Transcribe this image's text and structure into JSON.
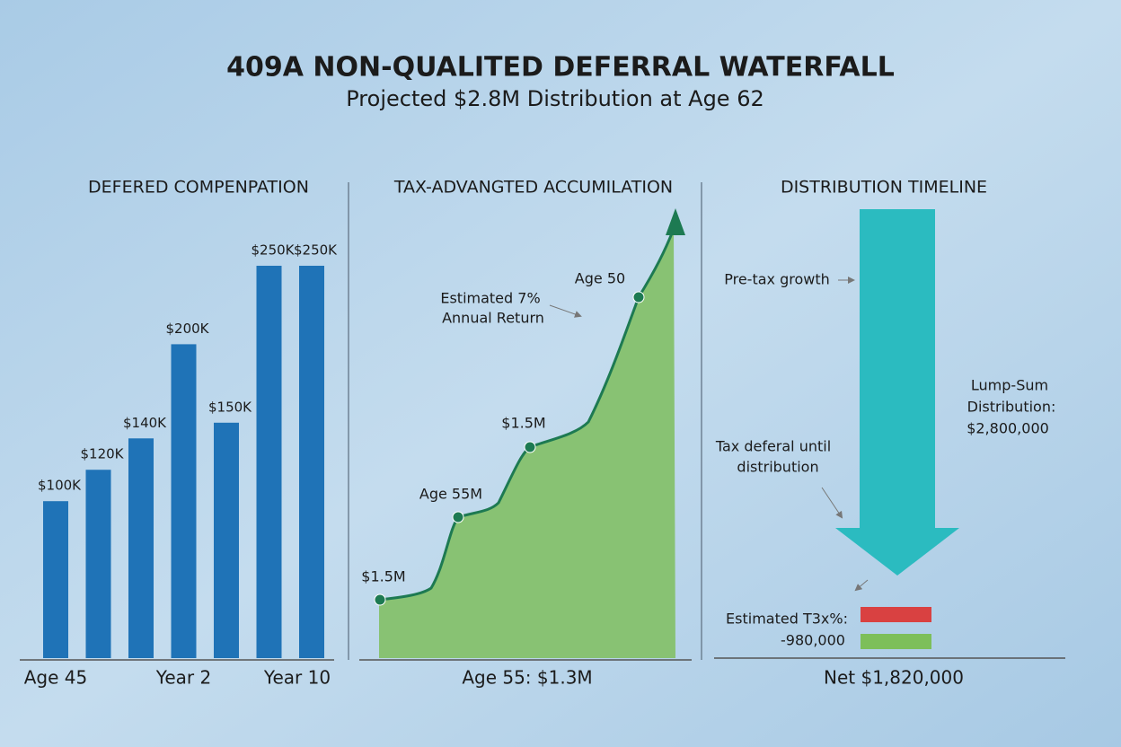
{
  "header": {
    "title": "409A NON-QUALITED DEFERRAL WATERFALL",
    "subtitle": "Projected $2.8M Distribution at Age 62"
  },
  "chart_data": {
    "type": "bar",
    "title": "DEFERED COMPENPATION",
    "categories": [
      "Age 45",
      null,
      null,
      "Year 2",
      null,
      null,
      "Year 10"
    ],
    "values": [
      100000,
      120000,
      140000,
      200000,
      150000,
      250000,
      250000
    ],
    "value_labels": [
      "$100K",
      "$120K",
      "$140K",
      "$200K",
      "$150K",
      "$250K",
      "$250K"
    ],
    "color": "#1f73b7"
  },
  "accumulation": {
    "title": "TAX-ADVANGTED ACCUMILATION",
    "annotation": [
      "Estimated 7%",
      "Annual Return"
    ],
    "point_labels": [
      "$1.5M",
      "Age 55M",
      "$1.5M",
      "Age 50"
    ],
    "footer": "Age 55: $1.3M"
  },
  "distribution": {
    "title": "DISTRIBUTION TIMELINE",
    "pre_tax": "Pre-tax growth",
    "lump_sum": [
      "Lump-Sum",
      "Distribution:",
      "$2,800,000"
    ],
    "deferral": [
      "Tax deferal until",
      "distribution"
    ],
    "tax": [
      "Estimated T3x%:",
      "-980,000"
    ],
    "net": "Net $1,820,000"
  }
}
